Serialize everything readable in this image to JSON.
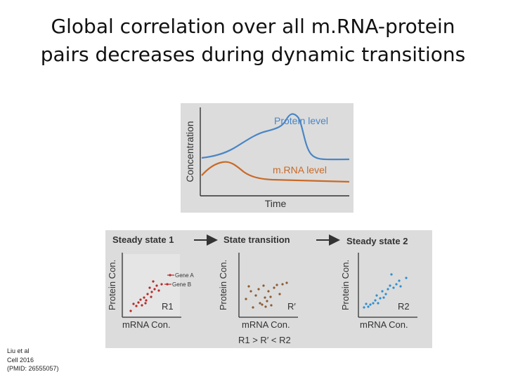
{
  "title": {
    "line1": "Global correlation over all m.RNA-protein",
    "line2": "pairs decreases during dynamic transitions"
  },
  "top_figure": {
    "y_axis_label": "Concentration",
    "x_axis_label": "Time",
    "protein_label": "Protein level",
    "mrna_label": "m.RNA level",
    "colors": {
      "protein": "#4a86c5",
      "mrna": "#c86a28",
      "background": "#dcdcdc"
    }
  },
  "bottom_figure": {
    "stage1": "Steady state 1",
    "stage2": "State transition",
    "stage3": "Steady state 2",
    "arrow_icon": "right-arrow-icon",
    "y_axis_label": "Protein Con.",
    "x_axis_label": "mRNA Con.",
    "r1": "R1",
    "r_prime": "R′",
    "r2": "R2",
    "relation": "R1 > R′ < R2",
    "legend_gene_a": "Gene A",
    "legend_gene_b": "Gene B",
    "colors": {
      "panel1": "#b52a2a",
      "panel2": "#8c5a32",
      "panel3": "#2e8fcf"
    }
  },
  "citation": {
    "line1": "Liu et al",
    "line2": "Cell 2016",
    "line3": "(PMID: 26555057)"
  }
}
